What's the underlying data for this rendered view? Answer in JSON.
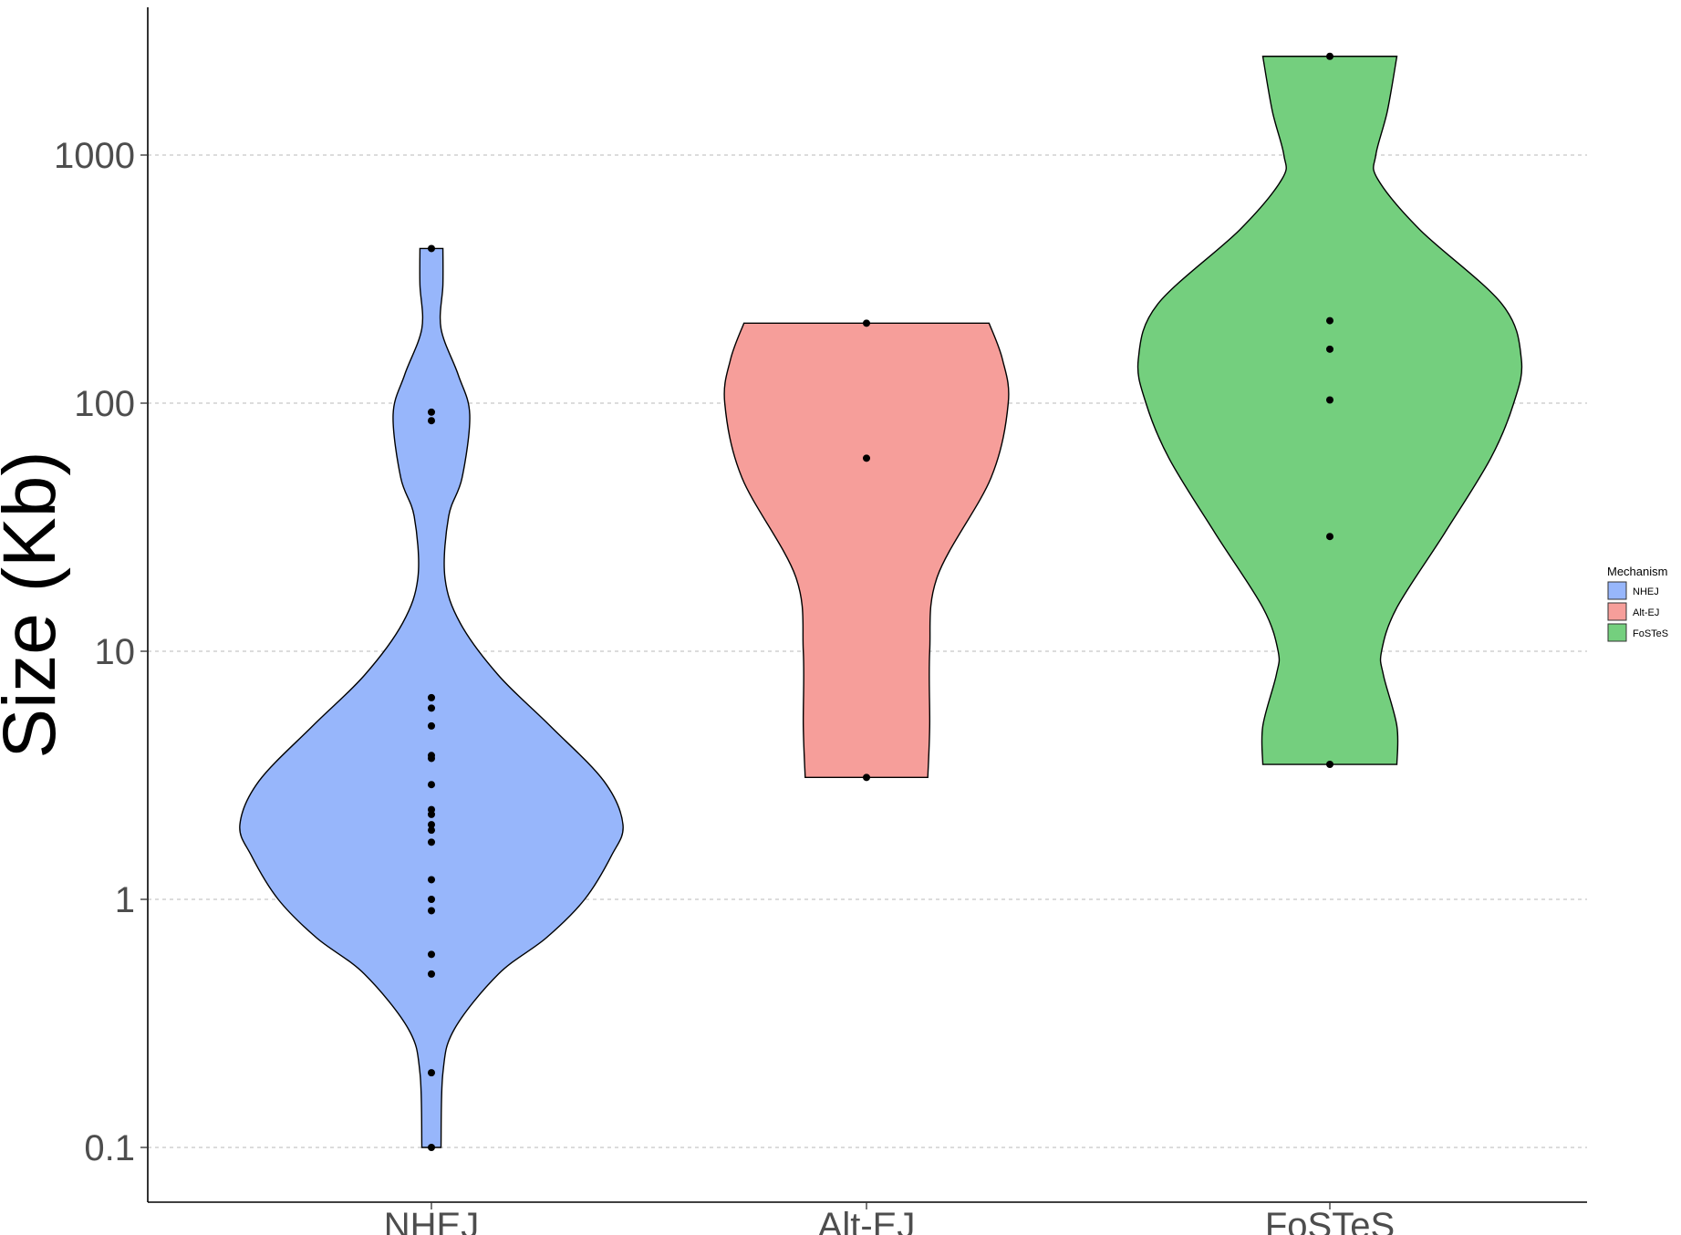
{
  "chart_data": {
    "type": "violin",
    "title": "",
    "xlabel": "",
    "ylabel": "Size (Kb)",
    "yscale": "log10",
    "ylim": [
      0.06,
      4000
    ],
    "y_ticks": [
      0.1,
      1,
      10,
      100,
      1000
    ],
    "y_tick_labels": [
      "0.1",
      "1",
      "10",
      "100",
      "1000"
    ],
    "grid": "horizontal dashed",
    "categories": [
      "NHEJ",
      "Alt-EJ",
      "FoSTeS"
    ],
    "legend": {
      "title": "Mechanism",
      "position": "right",
      "entries": [
        "NHEJ",
        "Alt-EJ",
        "FoSTeS"
      ]
    },
    "colors": {
      "NHEJ": "#97b6fb",
      "Alt-EJ": "#f69e9a",
      "FoSTeS": "#74cf7e",
      "outline": "#000000",
      "grid": "#c8c8c8"
    },
    "series": [
      {
        "name": "NHEJ",
        "points": [
          420,
          92,
          85,
          6.5,
          5.9,
          5.0,
          3.8,
          3.7,
          2.9,
          2.3,
          2.2,
          2.0,
          1.9,
          1.7,
          1.2,
          1.0,
          0.9,
          0.6,
          0.5,
          0.2,
          0.1
        ],
        "density": [
          [
            0.1,
            0.05
          ],
          [
            0.2,
            0.06
          ],
          [
            0.3,
            0.12
          ],
          [
            0.5,
            0.35
          ],
          [
            0.7,
            0.6
          ],
          [
            1.0,
            0.8
          ],
          [
            1.5,
            0.94
          ],
          [
            2.0,
            1.0
          ],
          [
            3.0,
            0.9
          ],
          [
            5.0,
            0.62
          ],
          [
            8.0,
            0.35
          ],
          [
            13,
            0.15
          ],
          [
            20,
            0.07
          ],
          [
            35,
            0.09
          ],
          [
            50,
            0.16
          ],
          [
            90,
            0.2
          ],
          [
            130,
            0.14
          ],
          [
            200,
            0.05
          ],
          [
            300,
            0.06
          ],
          [
            420,
            0.06
          ]
        ]
      },
      {
        "name": "Alt-EJ",
        "points": [
          210,
          60,
          3.1
        ],
        "density": [
          [
            3.1,
            0.32
          ],
          [
            5,
            0.33
          ],
          [
            10,
            0.33
          ],
          [
            20,
            0.37
          ],
          [
            50,
            0.65
          ],
          [
            100,
            0.74
          ],
          [
            150,
            0.71
          ],
          [
            210,
            0.64
          ]
        ]
      },
      {
        "name": "FoSTeS",
        "points": [
          2500,
          215,
          165,
          103,
          29,
          3.5
        ],
        "density": [
          [
            3.5,
            0.35
          ],
          [
            5,
            0.35
          ],
          [
            8,
            0.28
          ],
          [
            10,
            0.27
          ],
          [
            15,
            0.35
          ],
          [
            30,
            0.6
          ],
          [
            60,
            0.84
          ],
          [
            100,
            0.96
          ],
          [
            150,
            1.0
          ],
          [
            250,
            0.9
          ],
          [
            500,
            0.47
          ],
          [
            800,
            0.25
          ],
          [
            1000,
            0.24
          ],
          [
            1500,
            0.3
          ],
          [
            2500,
            0.35
          ]
        ]
      }
    ]
  }
}
